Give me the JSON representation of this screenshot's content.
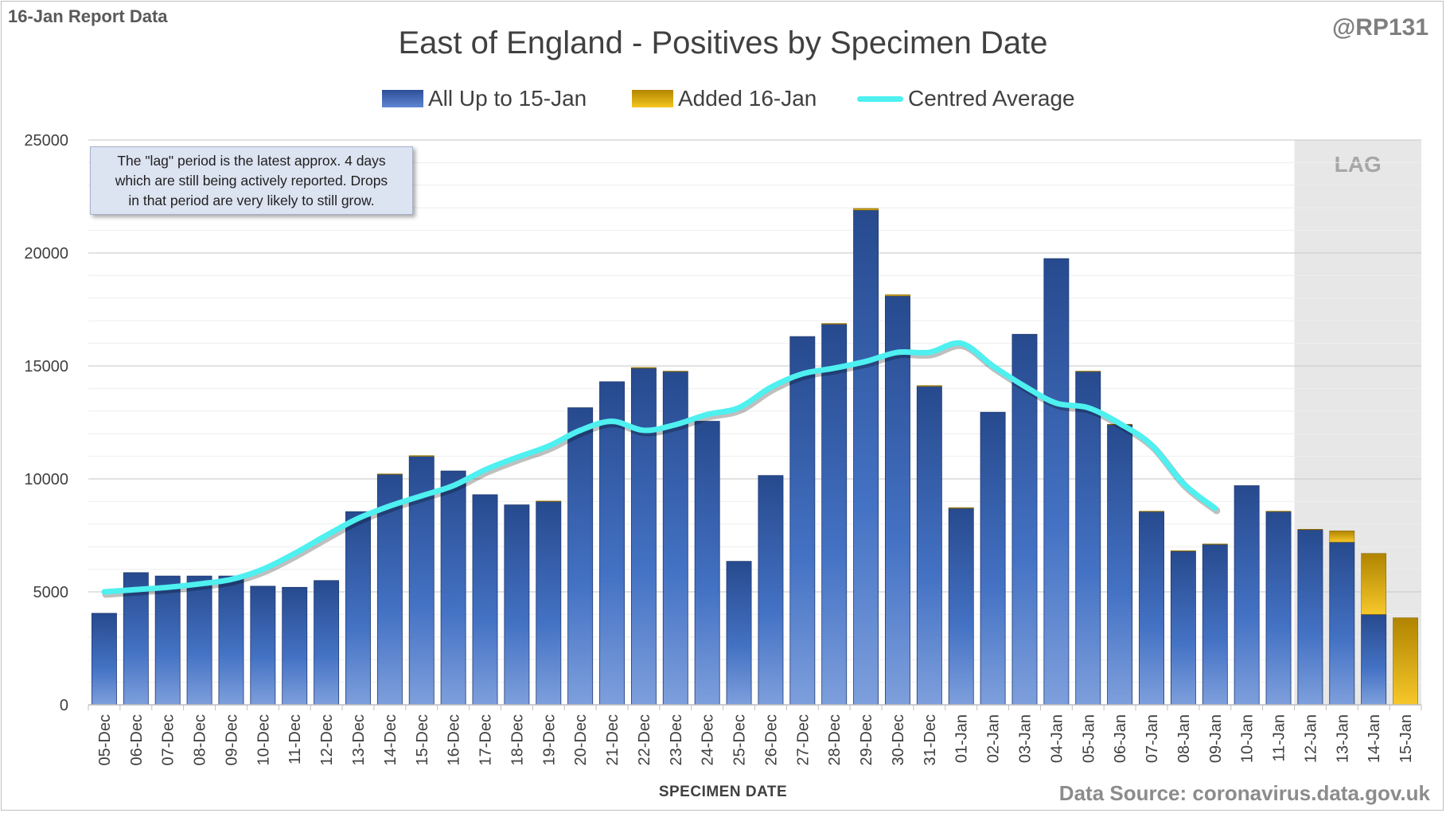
{
  "header": {
    "report_label": "16-Jan Report Data",
    "handle": "@RP131",
    "source": "Data Source: coronavirus.data.gov.uk"
  },
  "note": {
    "line1": "The \"lag\" period is the latest approx. 4 days",
    "line2": "which are still being actively reported.  Drops",
    "line3": "in that period are very likely to still grow."
  },
  "chart_data": {
    "type": "bar",
    "title": "East of England - Positives by Specimen Date",
    "xlabel": "SPECIMEN DATE",
    "ylabel": "",
    "ylim": [
      0,
      25000
    ],
    "yticks": [
      0,
      5000,
      10000,
      15000,
      20000,
      25000
    ],
    "grid": true,
    "legend_position": "top",
    "lag_label": "LAG",
    "lag_categories": [
      "12-Jan",
      "13-Jan",
      "14-Jan",
      "15-Jan"
    ],
    "categories": [
      "05-Dec",
      "06-Dec",
      "07-Dec",
      "08-Dec",
      "09-Dec",
      "10-Dec",
      "11-Dec",
      "12-Dec",
      "13-Dec",
      "14-Dec",
      "15-Dec",
      "16-Dec",
      "17-Dec",
      "18-Dec",
      "19-Dec",
      "20-Dec",
      "21-Dec",
      "22-Dec",
      "23-Dec",
      "24-Dec",
      "25-Dec",
      "26-Dec",
      "27-Dec",
      "28-Dec",
      "29-Dec",
      "30-Dec",
      "31-Dec",
      "01-Jan",
      "02-Jan",
      "03-Jan",
      "04-Jan",
      "05-Jan",
      "06-Jan",
      "07-Jan",
      "08-Jan",
      "09-Jan",
      "10-Jan",
      "11-Jan",
      "12-Jan",
      "13-Jan",
      "14-Jan",
      "15-Jan"
    ],
    "series": [
      {
        "name": "All Up to 15-Jan",
        "color": "#3b62b5",
        "values": [
          4050,
          5850,
          5700,
          5700,
          5700,
          5250,
          5200,
          5500,
          8550,
          10200,
          11000,
          10350,
          9300,
          8850,
          9000,
          13150,
          14300,
          14900,
          14750,
          12550,
          6350,
          10150,
          16300,
          16850,
          21900,
          18100,
          14100,
          8700,
          12950,
          16400,
          19750,
          14750,
          12400,
          8550,
          6800,
          7100,
          9700,
          8550,
          7750,
          7200,
          4000,
          0
        ]
      },
      {
        "name": "Added 16-Jan",
        "color": "#e6b416",
        "values": [
          0,
          0,
          0,
          0,
          0,
          0,
          0,
          0,
          0,
          20,
          30,
          0,
          0,
          0,
          20,
          0,
          0,
          30,
          20,
          0,
          0,
          0,
          0,
          30,
          70,
          50,
          30,
          30,
          0,
          0,
          0,
          20,
          20,
          20,
          20,
          20,
          0,
          20,
          20,
          500,
          2700,
          3850
        ]
      },
      {
        "name": "Centred Average",
        "color": "#4ef0f0",
        "type": "line",
        "values": [
          5000,
          5100,
          5200,
          5350,
          5550,
          6000,
          6700,
          7500,
          8250,
          8800,
          9250,
          9700,
          10400,
          10950,
          11450,
          12150,
          12550,
          12150,
          12400,
          12850,
          13150,
          14050,
          14650,
          14900,
          15200,
          15600,
          15600,
          16000,
          15000,
          14100,
          13350,
          13150,
          12450,
          11500,
          9800,
          8700,
          null,
          null,
          null,
          null,
          null,
          null
        ]
      }
    ]
  }
}
